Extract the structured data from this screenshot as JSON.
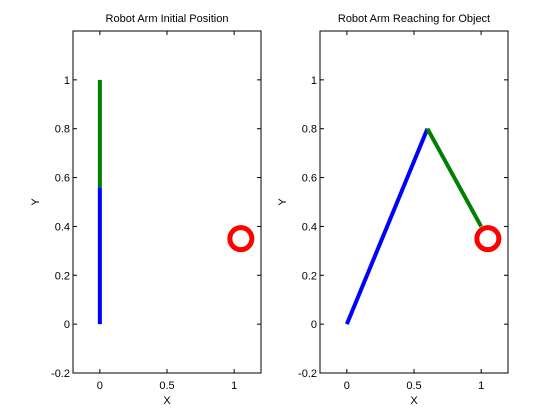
{
  "chart_data": [
    {
      "type": "line",
      "title": "Robot Arm Initial Position",
      "xlabel": "X",
      "ylabel": "Y",
      "xlim": [
        -0.2,
        1.2
      ],
      "ylim": [
        -0.2,
        1.2
      ],
      "xticks": [
        0,
        0.5,
        1
      ],
      "xtick_labels": [
        "0",
        "0.5",
        "1"
      ],
      "yticks": [
        -0.2,
        0,
        0.2,
        0.4,
        0.6,
        0.8,
        1
      ],
      "ytick_labels": [
        "-0.2",
        "0",
        "0.2",
        "0.4",
        "0.6",
        "0.8",
        "1"
      ],
      "grid": false,
      "series": [
        {
          "x": [
            0,
            0
          ],
          "y": [
            0,
            0.56
          ],
          "color": "#0000ff"
        },
        {
          "x": [
            0,
            0
          ],
          "y": [
            0.56,
            1.0
          ],
          "color": "#008000"
        },
        {
          "marker": "circle",
          "x": [
            1.05
          ],
          "y": [
            0.35
          ],
          "color": "#ff0000"
        }
      ]
    },
    {
      "type": "line",
      "title": "Robot Arm Reaching for Object",
      "xlabel": "X",
      "ylabel": "Y",
      "xlim": [
        -0.2,
        1.2
      ],
      "ylim": [
        -0.2,
        1.2
      ],
      "xticks": [
        0,
        0.5,
        1
      ],
      "xtick_labels": [
        "0",
        "0.5",
        "1"
      ],
      "yticks": [
        -0.2,
        0,
        0.2,
        0.4,
        0.6,
        0.8,
        1
      ],
      "ytick_labels": [
        "-0.2",
        "0",
        "0.2",
        "0.4",
        "0.6",
        "0.8",
        "1"
      ],
      "grid": false,
      "series": [
        {
          "x": [
            0,
            0.6
          ],
          "y": [
            0,
            0.8
          ],
          "color": "#0000ff"
        },
        {
          "x": [
            0.6,
            1.0
          ],
          "y": [
            0.8,
            0.4
          ],
          "color": "#008000"
        },
        {
          "marker": "circle",
          "x": [
            1.05
          ],
          "y": [
            0.35
          ],
          "color": "#ff0000"
        }
      ]
    }
  ]
}
